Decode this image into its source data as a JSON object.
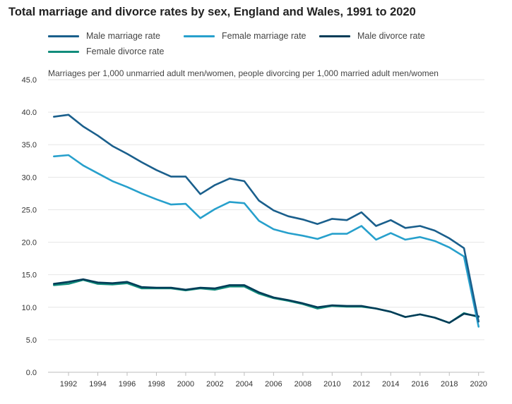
{
  "chart_data": {
    "type": "line",
    "title": "Total marriage and divorce rates by sex, England and Wales, 1991 to 2020",
    "subtitle": "Marriages per 1,000 unmarried adult men/women, people divorcing per 1,000 married adult men/women",
    "xlabel": "",
    "ylabel": "",
    "x": [
      1991,
      1992,
      1993,
      1994,
      1995,
      1996,
      1997,
      1998,
      1999,
      2000,
      2001,
      2002,
      2003,
      2004,
      2005,
      2006,
      2007,
      2008,
      2009,
      2010,
      2011,
      2012,
      2013,
      2014,
      2015,
      2016,
      2017,
      2018,
      2019,
      2020
    ],
    "xticks": [
      1992,
      1994,
      1996,
      1998,
      2000,
      2002,
      2004,
      2006,
      2008,
      2010,
      2012,
      2014,
      2016,
      2018,
      2020
    ],
    "xtick_labels": [
      "1992",
      "1994",
      "1996",
      "1998",
      "2000",
      "2002",
      "2004",
      "2006",
      "2008",
      "2010",
      "2012",
      "2014",
      "2016",
      "2018",
      "2020"
    ],
    "xlim": [
      1990.6,
      2020.4
    ],
    "ylim": [
      0,
      45
    ],
    "yticks": [
      0,
      5,
      10,
      15,
      20,
      25,
      30,
      35,
      40,
      45
    ],
    "ytick_labels": [
      "0.0",
      "5.0",
      "10.0",
      "15.0",
      "20.0",
      "25.0",
      "30.0",
      "35.0",
      "40.0",
      "45.0"
    ],
    "grid": true,
    "legend_position": "top",
    "series": [
      {
        "name": "Male marriage rate",
        "color": "#1a5f8c",
        "values": [
          39.3,
          39.6,
          37.8,
          36.4,
          34.8,
          33.6,
          32.3,
          31.1,
          30.1,
          30.1,
          27.4,
          28.8,
          29.8,
          29.4,
          26.4,
          24.9,
          24.0,
          23.5,
          22.8,
          23.6,
          23.4,
          24.6,
          22.5,
          23.4,
          22.2,
          22.5,
          21.8,
          20.6,
          19.1,
          7.8
        ]
      },
      {
        "name": "Female marriage rate",
        "color": "#27a0cc",
        "values": [
          33.2,
          33.4,
          31.8,
          30.6,
          29.4,
          28.5,
          27.5,
          26.6,
          25.8,
          25.9,
          23.7,
          25.1,
          26.2,
          26.0,
          23.3,
          22.0,
          21.4,
          21.0,
          20.5,
          21.3,
          21.3,
          22.5,
          20.4,
          21.4,
          20.4,
          20.8,
          20.2,
          19.2,
          17.8,
          7.0
        ]
      },
      {
        "name": "Male divorce rate",
        "color": "#003c57",
        "values": [
          13.6,
          13.9,
          14.3,
          13.8,
          13.7,
          13.9,
          13.1,
          13.0,
          13.0,
          12.7,
          13.0,
          12.9,
          13.4,
          13.4,
          12.3,
          11.5,
          11.1,
          10.6,
          10.0,
          10.3,
          10.2,
          10.2,
          9.8,
          9.3,
          8.5,
          8.9,
          8.4,
          7.6,
          9.0,
          8.6
        ]
      },
      {
        "name": "Female divorce rate",
        "color": "#118c7b",
        "values": [
          13.4,
          13.6,
          14.2,
          13.6,
          13.5,
          13.7,
          12.9,
          12.9,
          12.9,
          12.6,
          12.9,
          12.7,
          13.2,
          13.2,
          12.1,
          11.4,
          11.0,
          10.5,
          9.8,
          10.2,
          10.1,
          10.1,
          9.8,
          9.3,
          8.5,
          8.9,
          8.4,
          7.6,
          9.1,
          8.5
        ]
      }
    ]
  }
}
